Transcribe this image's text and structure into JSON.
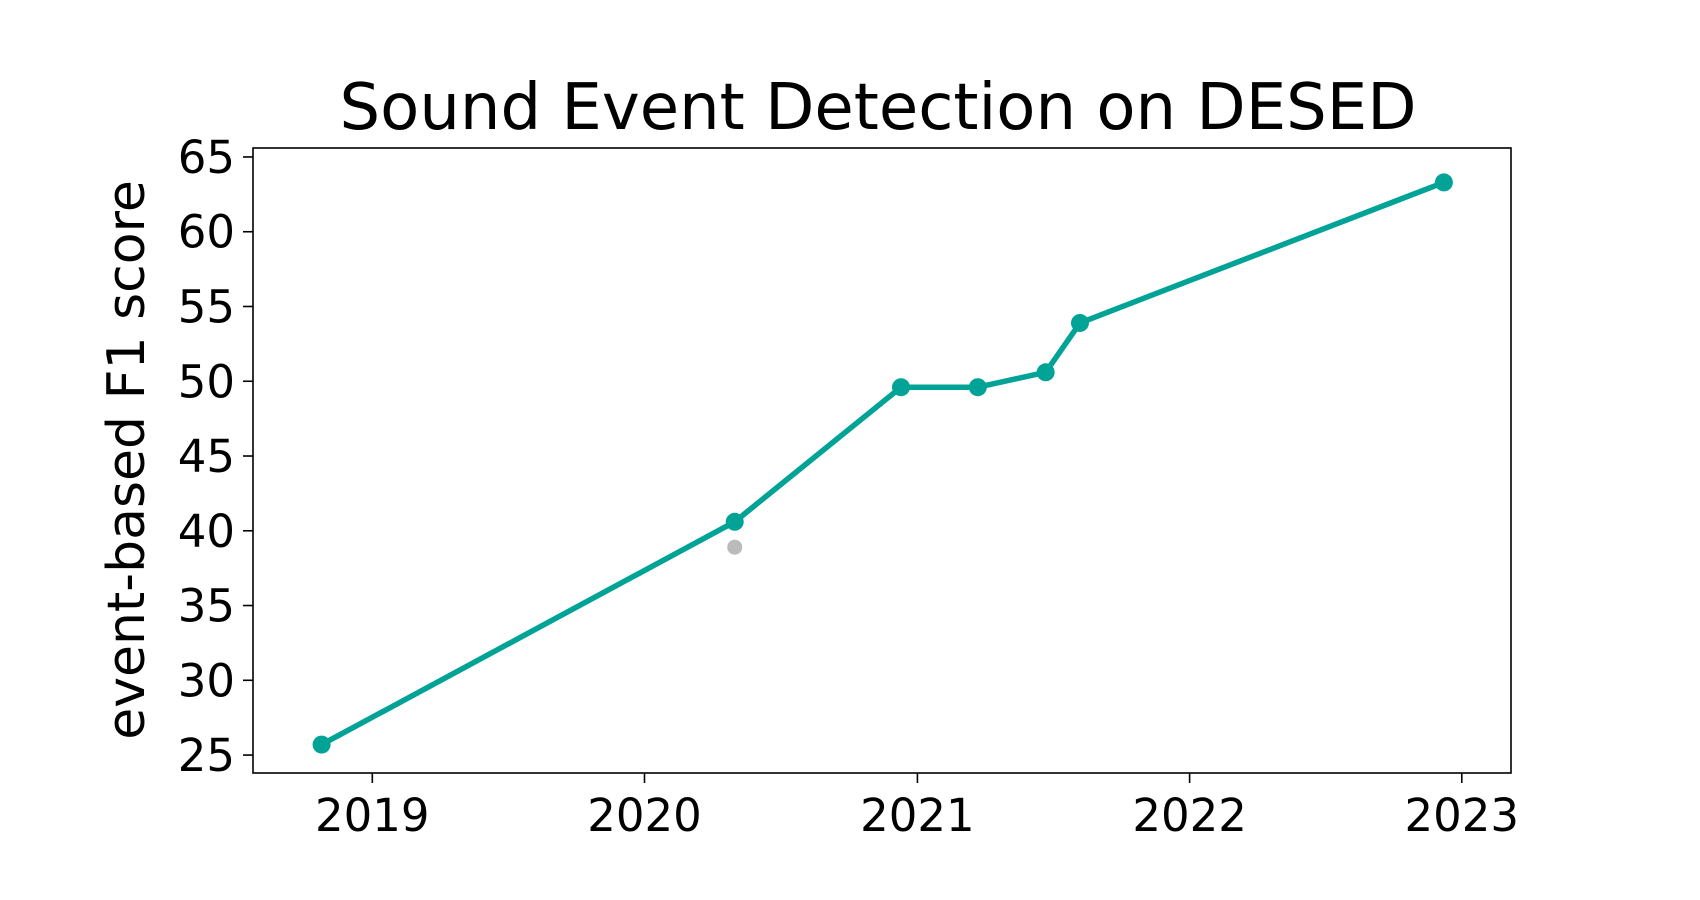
{
  "chart_data": {
    "type": "line",
    "title": "Sound Event Detection on DESED",
    "xlabel": "",
    "ylabel": "event-based F1 score",
    "x_ticks": [
      "2019",
      "2020",
      "2021",
      "2022",
      "2023"
    ],
    "y_ticks": [
      25,
      30,
      35,
      40,
      45,
      50,
      55,
      60,
      65
    ],
    "xlim": [
      "2018-07-25",
      "2023-03-08"
    ],
    "ylim": [
      23.8,
      65.6
    ],
    "grid": false,
    "legend": "none",
    "series": [
      {
        "color": "#00a396",
        "points": [
          {
            "x": "2018-10-25",
            "y": 25.7
          },
          {
            "x": "2020-05-01",
            "y": 40.6
          },
          {
            "x": "2020-12-10",
            "y": 49.6
          },
          {
            "x": "2021-03-23",
            "y": 49.6
          },
          {
            "x": "2021-06-22",
            "y": 50.6
          },
          {
            "x": "2021-08-07",
            "y": 53.9
          },
          {
            "x": "2022-12-08",
            "y": 63.3
          }
        ]
      }
    ],
    "other_points": [
      {
        "x": "2020-05-01",
        "y": 38.9,
        "color": "#bbbbbb"
      }
    ]
  }
}
